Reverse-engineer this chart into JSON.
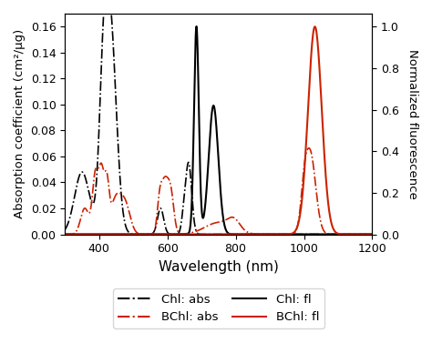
{
  "xlabel": "Wavelength (nm)",
  "ylabel_left": "Absorption coefficient (cm²/µg)",
  "ylabel_right": "Normalized fluorescence",
  "xlim": [
    300,
    1200
  ],
  "ylim_left": [
    0,
    0.17
  ],
  "ylim_right": [
    0,
    1.0625
  ],
  "yticks_left": [
    0.0,
    0.02,
    0.04,
    0.06,
    0.08,
    0.1,
    0.12,
    0.14,
    0.16
  ],
  "yticks_right": [
    0.0,
    0.2,
    0.4,
    0.6,
    0.8,
    1.0
  ],
  "xticks": [
    400,
    600,
    800,
    1000,
    1200
  ],
  "color_black": "#000000",
  "color_red": "#cc2200",
  "figsize": [
    4.74,
    3.88
  ],
  "dpi": 100,
  "fl_scale": 0.16
}
